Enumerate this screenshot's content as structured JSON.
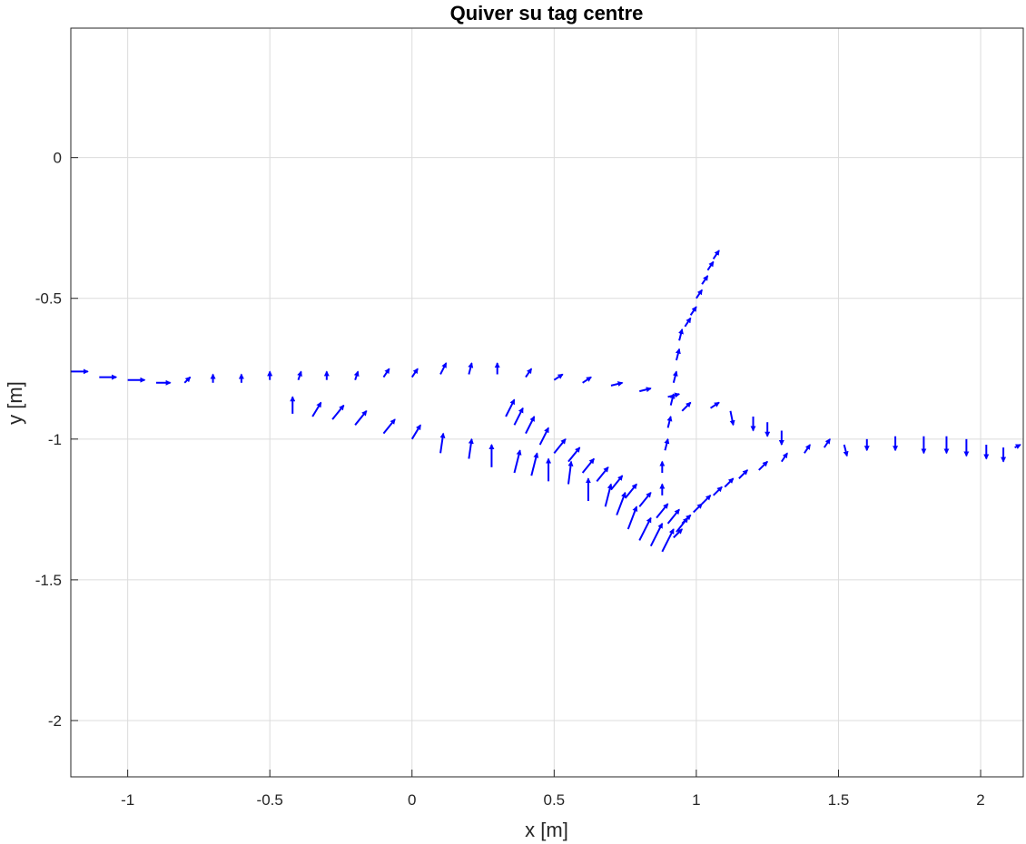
{
  "chart_data": {
    "type": "quiver",
    "title": "Quiver su tag centre",
    "xlabel": "x [m]",
    "ylabel": "y [m]",
    "xlim": [
      -1.2,
      2.15
    ],
    "ylim": [
      -2.2,
      0.46
    ],
    "xticks": [
      -1,
      -0.5,
      0,
      0.5,
      1,
      1.5,
      2
    ],
    "xtick_labels": [
      "-1",
      "-0.5",
      "0",
      "0.5",
      "1",
      "1.5",
      "2"
    ],
    "yticks": [
      0,
      -0.5,
      -1,
      -1.5,
      -2
    ],
    "ytick_labels": [
      "0",
      "-0.5",
      "-1",
      "-1.5",
      "-2"
    ],
    "grid": true,
    "box": true,
    "arrow_color": "#0000ff",
    "series": [
      {
        "x": [
          -1.2,
          -1.1,
          -1.0,
          -0.9,
          -0.8,
          -0.7,
          -0.6,
          -0.5,
          -0.4,
          -0.3,
          -0.2,
          -0.1,
          0.0,
          0.1,
          0.2,
          0.3,
          0.4,
          0.5,
          0.6,
          0.7,
          0.8,
          0.9
        ],
        "y": [
          -0.76,
          -0.78,
          -0.79,
          -0.8,
          -0.8,
          -0.8,
          -0.8,
          -0.79,
          -0.79,
          -0.79,
          -0.79,
          -0.78,
          -0.78,
          -0.77,
          -0.77,
          -0.77,
          -0.78,
          -0.79,
          -0.8,
          -0.81,
          -0.83,
          -0.85
        ],
        "u": [
          0.06,
          0.06,
          0.06,
          0.05,
          0.02,
          0.0,
          0.0,
          0.0,
          0.01,
          0.0,
          0.01,
          0.02,
          0.02,
          0.02,
          0.01,
          0.0,
          0.02,
          0.03,
          0.03,
          0.04,
          0.04,
          0.04
        ],
        "v": [
          0.0,
          0.0,
          0.0,
          0.0,
          0.02,
          0.03,
          0.03,
          0.03,
          0.03,
          0.03,
          0.03,
          0.03,
          0.03,
          0.04,
          0.04,
          0.04,
          0.03,
          0.02,
          0.02,
          0.01,
          0.01,
          0.01
        ]
      },
      {
        "x": [
          -0.42,
          -0.35,
          -0.28,
          -0.2,
          -0.1,
          0.0,
          0.1,
          0.2,
          0.28,
          0.36,
          0.42,
          0.48,
          0.55,
          0.62,
          0.68,
          0.72,
          0.76,
          0.8,
          0.84,
          0.88
        ],
        "y": [
          -0.91,
          -0.92,
          -0.93,
          -0.95,
          -0.98,
          -1.0,
          -1.05,
          -1.07,
          -1.1,
          -1.12,
          -1.13,
          -1.15,
          -1.16,
          -1.22,
          -1.24,
          -1.27,
          -1.32,
          -1.36,
          -1.38,
          -1.4
        ],
        "u": [
          0.0,
          0.03,
          0.04,
          0.04,
          0.04,
          0.03,
          0.01,
          0.01,
          0.0,
          0.02,
          0.02,
          0.0,
          0.01,
          0.0,
          0.02,
          0.03,
          0.03,
          0.04,
          0.04,
          0.04
        ],
        "v": [
          0.06,
          0.05,
          0.05,
          0.05,
          0.05,
          0.05,
          0.07,
          0.07,
          0.08,
          0.08,
          0.08,
          0.08,
          0.08,
          0.08,
          0.08,
          0.08,
          0.08,
          0.08,
          0.08,
          0.08
        ]
      },
      {
        "x": [
          0.33,
          0.36,
          0.4,
          0.45,
          0.5,
          0.55,
          0.6,
          0.65,
          0.7,
          0.75,
          0.8,
          0.86,
          0.9,
          0.93
        ],
        "y": [
          -0.92,
          -0.95,
          -0.98,
          -1.02,
          -1.05,
          -1.08,
          -1.12,
          -1.15,
          -1.18,
          -1.21,
          -1.24,
          -1.28,
          -1.3,
          -1.33
        ],
        "u": [
          0.03,
          0.03,
          0.03,
          0.03,
          0.04,
          0.04,
          0.04,
          0.04,
          0.04,
          0.04,
          0.04,
          0.04,
          0.04,
          0.04
        ],
        "v": [
          0.06,
          0.06,
          0.06,
          0.06,
          0.05,
          0.05,
          0.05,
          0.05,
          0.05,
          0.05,
          0.05,
          0.05,
          0.05,
          0.05
        ]
      },
      {
        "x": [
          0.88,
          0.88,
          0.89,
          0.9,
          0.91,
          0.92,
          0.93,
          0.94,
          0.96,
          0.98,
          1.0,
          1.02,
          1.04,
          1.06
        ],
        "y": [
          -1.2,
          -1.12,
          -1.04,
          -0.96,
          -0.88,
          -0.8,
          -0.72,
          -0.65,
          -0.6,
          -0.56,
          -0.5,
          -0.45,
          -0.4,
          -0.36
        ],
        "u": [
          0.0,
          0.0,
          0.01,
          0.01,
          0.01,
          0.01,
          0.01,
          0.01,
          0.02,
          0.02,
          0.02,
          0.02,
          0.02,
          0.02
        ],
        "v": [
          0.04,
          0.04,
          0.04,
          0.04,
          0.04,
          0.04,
          0.04,
          0.04,
          0.03,
          0.03,
          0.03,
          0.03,
          0.03,
          0.03
        ]
      },
      {
        "x": [
          0.92,
          0.95,
          0.99,
          1.02,
          1.06,
          1.1,
          1.15,
          1.22,
          1.3,
          1.38,
          1.45,
          1.52,
          1.6,
          1.7,
          1.8,
          1.88,
          1.95,
          2.02,
          2.08,
          2.12
        ],
        "y": [
          -1.35,
          -1.3,
          -1.26,
          -1.23,
          -1.2,
          -1.17,
          -1.14,
          -1.11,
          -1.08,
          -1.05,
          -1.03,
          -1.02,
          -1.0,
          -0.99,
          -0.99,
          -0.99,
          -1.0,
          -1.02,
          -1.03,
          -1.03
        ],
        "u": [
          0.03,
          0.03,
          0.03,
          0.03,
          0.03,
          0.03,
          0.03,
          0.03,
          0.02,
          0.02,
          0.02,
          0.01,
          0.0,
          0.0,
          0.0,
          0.0,
          0.0,
          0.0,
          0.0,
          0.02
        ],
        "v": [
          0.03,
          0.03,
          0.03,
          0.03,
          0.03,
          0.03,
          0.03,
          0.03,
          0.03,
          0.03,
          0.03,
          -0.04,
          -0.04,
          -0.05,
          -0.06,
          -0.06,
          -0.06,
          -0.05,
          -0.05,
          0.01
        ]
      },
      {
        "x": [
          0.95,
          1.05,
          1.12,
          1.2,
          1.25,
          1.3
        ],
        "y": [
          -0.9,
          -0.89,
          -0.9,
          -0.92,
          -0.94,
          -0.97
        ],
        "u": [
          0.03,
          0.03,
          0.01,
          0.0,
          0.0,
          0.0
        ],
        "v": [
          0.03,
          0.02,
          -0.05,
          -0.05,
          -0.05,
          -0.05
        ]
      }
    ]
  }
}
